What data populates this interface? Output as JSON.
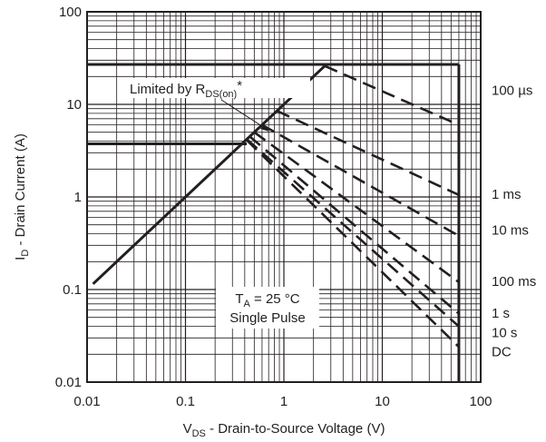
{
  "chart_data": {
    "type": "line",
    "x_scale": "log",
    "y_scale": "log",
    "xlim": [
      0.01,
      100
    ],
    "ylim": [
      0.01,
      100
    ],
    "grid": true,
    "x_ticks": [
      {
        "value": 0.01,
        "label": "0.01"
      },
      {
        "value": 0.1,
        "label": "0.1"
      },
      {
        "value": 1,
        "label": "1"
      },
      {
        "value": 10,
        "label": "10"
      },
      {
        "value": 100,
        "label": "100"
      }
    ],
    "y_ticks": [
      {
        "value": 0.01,
        "label": "0.01"
      },
      {
        "value": 0.1,
        "label": "0.1"
      },
      {
        "value": 1,
        "label": "1"
      },
      {
        "value": 10,
        "label": "10"
      },
      {
        "value": 100,
        "label": "100"
      }
    ],
    "xlabel": {
      "main": "V",
      "sub": "DS",
      "rest": " - Drain-to-Source Voltage (V)"
    },
    "ylabel": {
      "main": "I",
      "sub": "D",
      "rest": " - Drain Current (A)"
    },
    "annotation_rds": {
      "pre": "Limited by R",
      "sub": "DS(on)",
      "post": "*"
    },
    "annotation_conditions": {
      "line1_main": "T",
      "line1_sub": "A",
      "line1_rest": " = 25 °C",
      "line2": "Single Pulse"
    },
    "boundary": {
      "rds_limit": {
        "x": [
          0.0115,
          2.6
        ],
        "y": [
          0.115,
          26
        ]
      },
      "current_limit_high": {
        "x": [
          0.01,
          60
        ],
        "y": [
          27,
          27
        ]
      },
      "current_limit_low": {
        "x": [
          0.01,
          0.42
        ],
        "y": [
          3.75,
          3.75
        ]
      },
      "voltage_limit": {
        "x": [
          60,
          60
        ],
        "y": [
          0.01,
          27
        ]
      }
    },
    "series": [
      {
        "name": "100 µs",
        "x": [
          2.6,
          60
        ],
        "y": [
          26,
          6
        ]
      },
      {
        "name": "1 ms",
        "x": [
          0.85,
          60
        ],
        "y": [
          8.5,
          1.05
        ]
      },
      {
        "name": "10 ms",
        "x": [
          0.6,
          60
        ],
        "y": [
          6,
          0.38
        ]
      },
      {
        "name": "100 ms",
        "x": [
          0.5,
          60
        ],
        "y": [
          5,
          0.12
        ]
      },
      {
        "name": "1 s",
        "x": [
          0.45,
          60
        ],
        "y": [
          4.5,
          0.055
        ]
      },
      {
        "name": "10 s",
        "x": [
          0.42,
          60
        ],
        "y": [
          4.2,
          0.04
        ]
      },
      {
        "name": "DC",
        "x": [
          0.42,
          60
        ],
        "y": [
          4.1,
          0.024
        ]
      }
    ],
    "curve_label_positions": {
      "100 µs": 13.2,
      "1 ms": 1.0,
      "10 ms": 0.41,
      "100 ms": 0.114,
      "1 s": 0.052,
      "10 s": 0.032,
      "DC": 0.02
    }
  }
}
